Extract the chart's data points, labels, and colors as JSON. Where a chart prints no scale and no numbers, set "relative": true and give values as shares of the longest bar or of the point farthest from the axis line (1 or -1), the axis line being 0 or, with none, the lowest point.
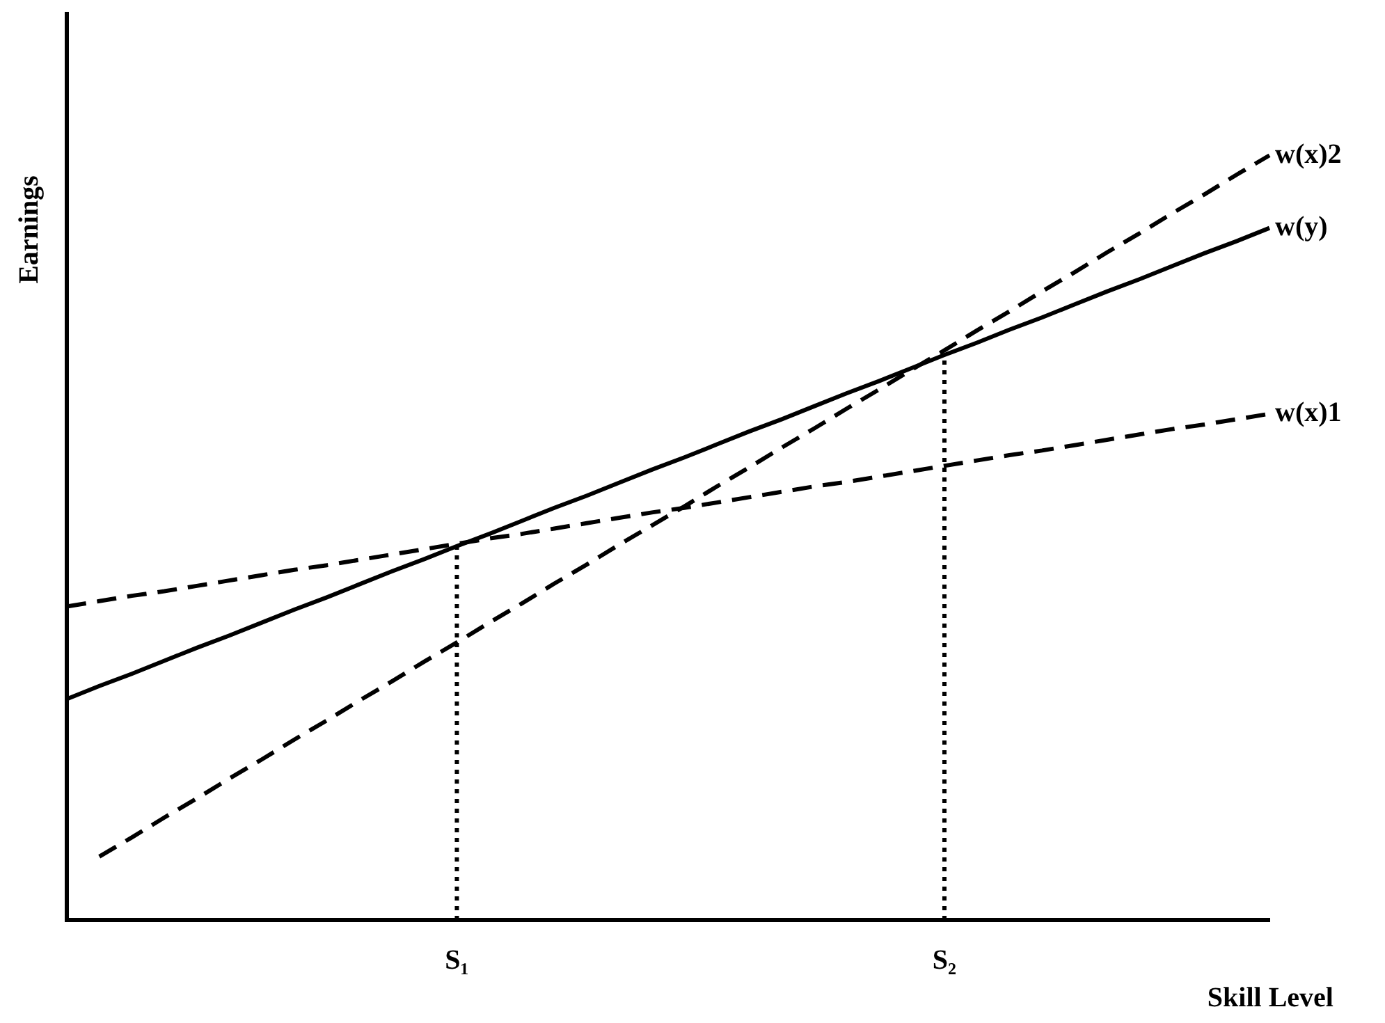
{
  "chart_data": {
    "type": "line",
    "xlabel": "Skill Level",
    "ylabel": "Earnings",
    "relative": true,
    "categories": [
      null,
      null,
      null,
      null,
      null,
      null,
      null,
      null,
      null,
      null,
      null,
      null,
      "S₁",
      null,
      null,
      null,
      null,
      null,
      null,
      null,
      null,
      null,
      null,
      null,
      null,
      null,
      null,
      "S₂",
      null,
      null,
      null,
      null,
      null,
      null,
      null,
      null,
      null,
      null
    ],
    "tick_labels": "x",
    "series": [
      {
        "name": "w(y)",
        "color": "#000000",
        "line_style": "solid",
        "values": [
          0.289,
          0.306,
          0.322,
          0.339,
          0.356,
          0.372,
          0.389,
          0.406,
          0.422,
          0.439,
          0.456,
          0.472,
          0.489,
          0.505,
          0.522,
          0.539,
          0.555,
          0.572,
          0.589,
          0.605,
          0.622,
          0.639,
          0.655,
          0.672,
          0.689,
          0.705,
          0.722,
          0.739,
          0.755,
          0.772,
          0.788,
          0.805,
          0.822,
          0.838,
          0.855,
          0.872,
          0.888,
          0.905
        ]
      },
      {
        "name": "w(x)1",
        "color": "#000000",
        "line_style": "dashed",
        "values": [
          0.41,
          0.417,
          0.424,
          0.43,
          0.437,
          0.444,
          0.451,
          0.458,
          0.464,
          0.471,
          0.478,
          0.485,
          0.492,
          0.499,
          0.505,
          0.512,
          0.519,
          0.526,
          0.533,
          0.539,
          0.546,
          0.553,
          0.56,
          0.567,
          0.573,
          0.58,
          0.587,
          0.594,
          0.601,
          0.608,
          0.614,
          0.621,
          0.628,
          0.635,
          0.642,
          0.648,
          0.655,
          0.662
        ]
      },
      {
        "name": "w(x)2",
        "color": "#000000",
        "line_style": "dashed",
        "values": [
          null,
          0.083,
          0.108,
          0.134,
          0.159,
          0.185,
          0.21,
          0.236,
          0.261,
          0.287,
          0.312,
          0.338,
          0.363,
          0.389,
          0.414,
          0.44,
          0.465,
          0.491,
          0.516,
          0.541,
          0.567,
          0.592,
          0.618,
          0.643,
          0.669,
          0.694,
          0.72,
          0.745,
          0.771,
          0.796,
          0.822,
          0.847,
          0.873,
          0.898,
          0.924,
          0.949,
          0.975,
          1
        ]
      }
    ],
    "ref_lines": [
      {
        "axis": "x",
        "value": "S₁",
        "line_style": "dotted",
        "color": "#000000"
      },
      {
        "axis": "x",
        "value": "S₂",
        "line_style": "dotted",
        "color": "#000000"
      }
    ]
  }
}
